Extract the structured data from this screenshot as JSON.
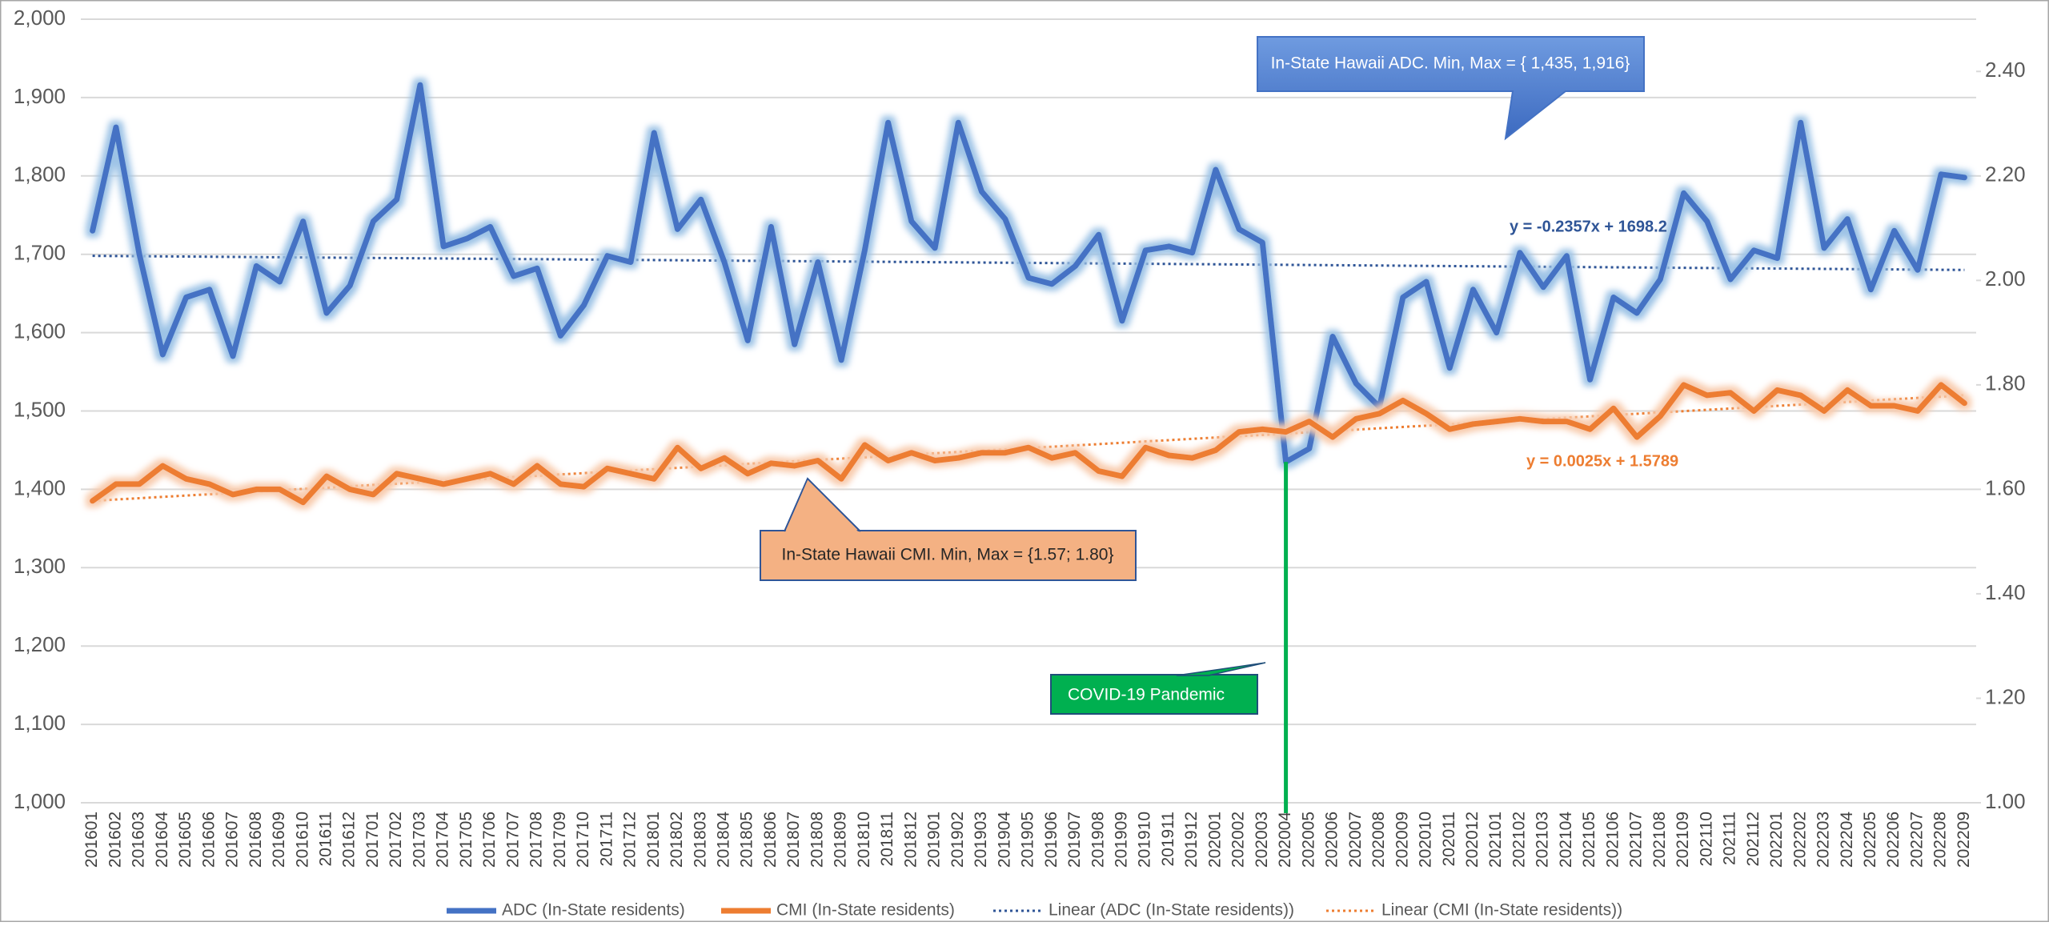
{
  "chart_data": {
    "type": "line",
    "categories": [
      "201601",
      "201602",
      "201603",
      "201604",
      "201605",
      "201606",
      "201607",
      "201608",
      "201609",
      "201610",
      "201611",
      "201612",
      "201701",
      "201702",
      "201703",
      "201704",
      "201705",
      "201706",
      "201707",
      "201708",
      "201709",
      "201710",
      "201711",
      "201712",
      "201801",
      "201802",
      "201803",
      "201804",
      "201805",
      "201806",
      "201807",
      "201808",
      "201809",
      "201810",
      "201811",
      "201812",
      "201901",
      "201902",
      "201903",
      "201904",
      "201905",
      "201906",
      "201907",
      "201908",
      "201909",
      "201910",
      "201911",
      "201912",
      "202001",
      "202002",
      "202003",
      "202004",
      "202005",
      "202006",
      "202007",
      "202008",
      "202009",
      "202010",
      "202011",
      "202012",
      "202101",
      "202102",
      "202103",
      "202104",
      "202105",
      "202106",
      "202107",
      "202108",
      "202109",
      "202110",
      "202111",
      "202112",
      "202201",
      "202202",
      "202203",
      "202204",
      "202205",
      "202206",
      "202207",
      "202208",
      "202209"
    ],
    "series": [
      {
        "name": "ADC (In-State  residents)",
        "color": "#4472c4",
        "glow": "#9dc3e6",
        "values": [
          1730,
          1862,
          1700,
          1572,
          1645,
          1655,
          1570,
          1685,
          1665,
          1742,
          1625,
          1660,
          1742,
          1770,
          1916,
          1710,
          1720,
          1735,
          1672,
          1682,
          1596,
          1635,
          1698,
          1690,
          1855,
          1732,
          1770,
          1690,
          1590,
          1735,
          1585,
          1690,
          1565,
          1705,
          1868,
          1742,
          1708,
          1868,
          1780,
          1745,
          1670,
          1662,
          1685,
          1725,
          1615,
          1705,
          1710,
          1702,
          1808,
          1732,
          1715,
          1435,
          1452,
          1595,
          1535,
          1505,
          1645,
          1665,
          1555,
          1655,
          1600,
          1702,
          1658,
          1698,
          1540,
          1645,
          1625,
          1668,
          1778,
          1742,
          1668,
          1705,
          1695,
          1868,
          1708,
          1745,
          1655,
          1730,
          1680,
          1802,
          1798
        ],
        "trendline": {
          "name": "Linear (ADC (In-State  residents))",
          "color": "#2f5597",
          "start": 1698,
          "end": 1680,
          "equation": "y = -0.2357x + 1698.2"
        }
      },
      {
        "name": "CMI (In-State residents)",
        "color": "#ed7d31",
        "glow": "#f8cbad",
        "axis": "y2",
        "values": [
          1.578,
          1.61,
          1.61,
          1.645,
          1.62,
          1.61,
          1.59,
          1.6,
          1.6,
          1.575,
          1.625,
          1.6,
          1.59,
          1.63,
          1.62,
          1.61,
          1.62,
          1.63,
          1.61,
          1.645,
          1.61,
          1.605,
          1.64,
          1.63,
          1.62,
          1.68,
          1.64,
          1.66,
          1.63,
          1.65,
          1.645,
          1.655,
          1.62,
          1.685,
          1.655,
          1.67,
          1.655,
          1.66,
          1.67,
          1.67,
          1.68,
          1.66,
          1.67,
          1.635,
          1.625,
          1.68,
          1.665,
          1.66,
          1.675,
          1.71,
          1.715,
          1.71,
          1.73,
          1.7,
          1.735,
          1.745,
          1.77,
          1.745,
          1.715,
          1.725,
          1.73,
          1.735,
          1.73,
          1.73,
          1.715,
          1.755,
          1.7,
          1.74,
          1.8,
          1.78,
          1.785,
          1.75,
          1.79,
          1.78,
          1.75,
          1.79,
          1.76,
          1.76,
          1.75,
          1.8,
          1.765
        ],
        "trendline": {
          "name": "Linear (CMI (In-State residents))",
          "color": "#ed7d31",
          "start": 1.578,
          "end": 1.78,
          "equation": "y = 0.0025x + 1.5789"
        }
      }
    ],
    "ylim": [
      1000,
      2000
    ],
    "yticks": [
      {
        "value": 1000,
        "label": "1,000"
      },
      {
        "value": 1100,
        "label": "1,100"
      },
      {
        "value": 1200,
        "label": "1,200"
      },
      {
        "value": 1300,
        "label": "1,300"
      },
      {
        "value": 1400,
        "label": "1,400"
      },
      {
        "value": 1500,
        "label": "1,500"
      },
      {
        "value": 1600,
        "label": "1,600"
      },
      {
        "value": 1700,
        "label": "1,700"
      },
      {
        "value": 1800,
        "label": "1,800"
      },
      {
        "value": 1900,
        "label": "1,900"
      },
      {
        "value": 2000,
        "label": "2,000"
      }
    ],
    "y2lim": [
      1.0,
      2.5
    ],
    "y2ticks": [
      {
        "value": 1.0,
        "label": "1.00"
      },
      {
        "value": 1.2,
        "label": "1.20"
      },
      {
        "value": 1.4,
        "label": "1.40"
      },
      {
        "value": 1.6,
        "label": "1.60"
      },
      {
        "value": 1.8,
        "label": "1.80"
      },
      {
        "value": 2.0,
        "label": "2.00"
      },
      {
        "value": 2.2,
        "label": "2.20"
      },
      {
        "value": 2.4,
        "label": "2.40"
      }
    ],
    "grid": true,
    "legend": "bottom",
    "annotations": [
      {
        "text": "In-State Hawaii ADC. Min, Max = { 1,435, 1,916}"
      },
      {
        "text": "In-State Hawaii CMI.   Min, Max = {1.57; 1.80}"
      },
      {
        "text": "COVID-19 Pandemic",
        "category": "202004"
      }
    ]
  }
}
